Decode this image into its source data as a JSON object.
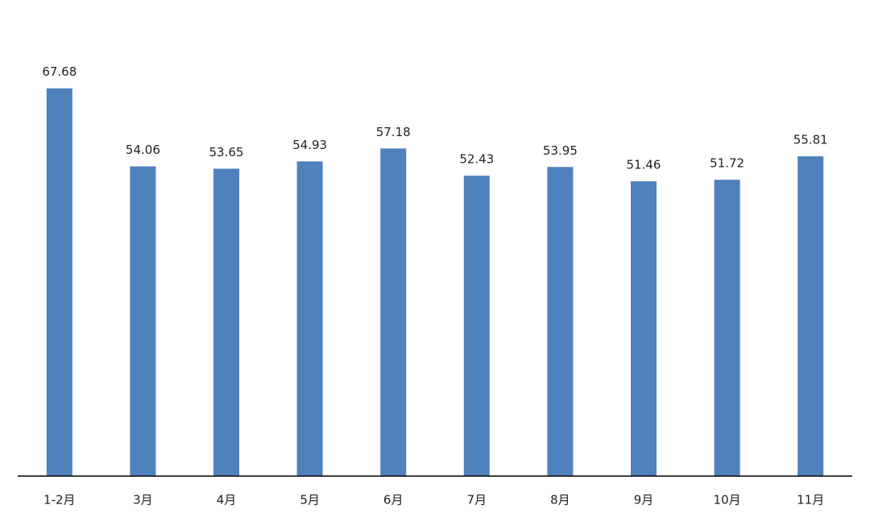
{
  "chart_data": {
    "type": "bar",
    "categories": [
      "1-2月",
      "3月",
      "4月",
      "5月",
      "6月",
      "7月",
      "8月",
      "9月",
      "10月",
      "11月"
    ],
    "values": [
      67.68,
      54.06,
      53.65,
      54.93,
      57.18,
      52.43,
      53.95,
      51.46,
      51.72,
      55.81
    ],
    "color": "#4f81bd",
    "ylim": [
      0,
      80
    ]
  }
}
